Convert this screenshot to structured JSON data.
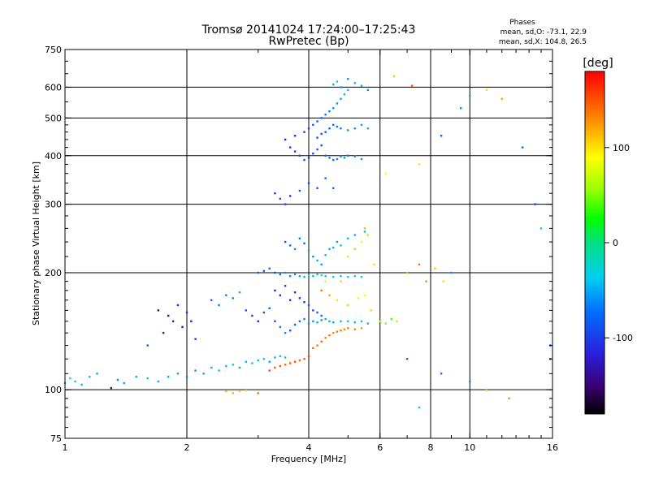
{
  "chart_data": {
    "type": "scatter",
    "title": "Tromsø 20141024 17:24:00–17:25:43",
    "subtitle": "RwPretec (Bp)",
    "stats": {
      "heading": "Phases",
      "line1": "mean, sd,O: -73.1, 22.9",
      "line2": "mean, sd,X: 104.8, 26.5"
    },
    "xlabel": "Frequency [MHz]",
    "ylabel": "Stationary phase Virtual Height [km]",
    "x_scale": "log",
    "y_scale": "log",
    "xlim": [
      1,
      16
    ],
    "ylim": [
      75,
      750
    ],
    "x_ticks": [
      1,
      2,
      4,
      6,
      8,
      10,
      16
    ],
    "x_tick_labels": [
      "1",
      "2",
      "4",
      "6",
      "8",
      "10",
      "16"
    ],
    "y_ticks": [
      75,
      100,
      200,
      300,
      400,
      500,
      600,
      750
    ],
    "y_tick_labels": [
      "75",
      "100",
      "200",
      "300",
      "400",
      "500",
      "600",
      "750"
    ],
    "x_grid": [
      2,
      4,
      6,
      8,
      10
    ],
    "y_grid": [
      100,
      200,
      300,
      400,
      500,
      600
    ],
    "grid": true,
    "colorbar": {
      "label": "[deg]",
      "range": [
        -180,
        180
      ],
      "ticks": [
        100,
        0,
        -100
      ],
      "tick_labels": [
        "100",
        "0",
        "-100"
      ]
    },
    "points": [
      [
        1.0,
        104,
        -40
      ],
      [
        1.03,
        107,
        -30
      ],
      [
        1.06,
        105,
        -35
      ],
      [
        1.1,
        103,
        -45
      ],
      [
        1.15,
        108,
        -40
      ],
      [
        1.2,
        110,
        -50
      ],
      [
        1.3,
        101,
        -140
      ],
      [
        1.35,
        106,
        -60
      ],
      [
        1.4,
        104,
        -55
      ],
      [
        1.5,
        108,
        -50
      ],
      [
        1.6,
        107,
        -40
      ],
      [
        1.7,
        105,
        -45
      ],
      [
        1.8,
        108,
        -50
      ],
      [
        1.9,
        110,
        -55
      ],
      [
        2.0,
        108,
        -60
      ],
      [
        2.1,
        112,
        -55
      ],
      [
        2.2,
        110,
        -50
      ],
      [
        2.3,
        114,
        -45
      ],
      [
        2.4,
        112,
        -40
      ],
      [
        2.5,
        115,
        -45
      ],
      [
        2.6,
        116,
        -40
      ],
      [
        2.7,
        114,
        -50
      ],
      [
        2.8,
        118,
        -45
      ],
      [
        2.9,
        117,
        -40
      ],
      [
        3.0,
        119,
        -45
      ],
      [
        3.1,
        120,
        -40
      ],
      [
        3.2,
        118,
        -50
      ],
      [
        3.3,
        121,
        -45
      ],
      [
        3.4,
        122,
        -40
      ],
      [
        3.5,
        121,
        -45
      ],
      [
        3.2,
        112,
        150
      ],
      [
        3.3,
        114,
        145
      ],
      [
        3.4,
        115,
        150
      ],
      [
        3.5,
        116,
        140
      ],
      [
        3.6,
        117,
        145
      ],
      [
        3.7,
        118,
        150
      ],
      [
        3.8,
        119,
        140
      ],
      [
        3.9,
        120,
        145
      ],
      [
        4.0,
        122,
        150
      ],
      [
        4.1,
        128,
        140
      ],
      [
        4.2,
        130,
        135
      ],
      [
        4.3,
        133,
        140
      ],
      [
        4.4,
        136,
        130
      ],
      [
        4.5,
        138,
        140
      ],
      [
        4.6,
        140,
        130
      ],
      [
        4.7,
        141,
        135
      ],
      [
        4.8,
        142,
        140
      ],
      [
        4.9,
        143,
        130
      ],
      [
        5.0,
        144,
        135
      ],
      [
        5.2,
        143,
        130
      ],
      [
        5.4,
        144,
        125
      ],
      [
        2.5,
        99,
        110
      ],
      [
        2.6,
        98,
        115
      ],
      [
        2.7,
        99,
        100
      ],
      [
        2.8,
        100,
        130
      ],
      [
        3.0,
        98,
        140
      ],
      [
        1.7,
        160,
        -130
      ],
      [
        1.8,
        155,
        -140
      ],
      [
        1.85,
        150,
        -120
      ],
      [
        1.9,
        165,
        -110
      ],
      [
        2.0,
        158,
        -100
      ],
      [
        2.05,
        150,
        -115
      ],
      [
        1.75,
        140,
        -130
      ],
      [
        1.95,
        145,
        -120
      ],
      [
        2.1,
        135,
        -100
      ],
      [
        1.6,
        130,
        -80
      ],
      [
        2.3,
        170,
        -80
      ],
      [
        2.4,
        165,
        -70
      ],
      [
        2.5,
        175,
        -60
      ],
      [
        2.6,
        172,
        -65
      ],
      [
        2.7,
        178,
        -50
      ],
      [
        2.8,
        160,
        -90
      ],
      [
        2.9,
        155,
        -100
      ],
      [
        3.0,
        150,
        -110
      ],
      [
        3.1,
        158,
        -95
      ],
      [
        3.2,
        162,
        -80
      ],
      [
        3.3,
        150,
        -90
      ],
      [
        3.4,
        145,
        -70
      ],
      [
        3.5,
        140,
        -60
      ],
      [
        3.6,
        142,
        -85
      ],
      [
        3.7,
        147,
        -75
      ],
      [
        3.8,
        150,
        -70
      ],
      [
        3.9,
        152,
        -65
      ],
      [
        4.0,
        148,
        -60
      ],
      [
        4.1,
        150,
        -55
      ],
      [
        4.2,
        149,
        -50
      ],
      [
        4.3,
        151,
        -55
      ],
      [
        4.4,
        152,
        -50
      ],
      [
        4.5,
        150,
        -45
      ],
      [
        4.6,
        149,
        -50
      ],
      [
        4.8,
        150,
        -45
      ],
      [
        5.0,
        150,
        -40
      ],
      [
        5.2,
        149,
        -45
      ],
      [
        5.4,
        150,
        -40
      ],
      [
        5.6,
        148,
        -45
      ],
      [
        3.0,
        200,
        -80
      ],
      [
        3.1,
        202,
        -85
      ],
      [
        3.2,
        205,
        -75
      ],
      [
        3.3,
        200,
        -90
      ],
      [
        3.4,
        198,
        -70
      ],
      [
        3.5,
        200,
        -60
      ],
      [
        3.6,
        196,
        -65
      ],
      [
        3.7,
        198,
        -55
      ],
      [
        3.8,
        196,
        -50
      ],
      [
        3.9,
        195,
        -45
      ],
      [
        4.0,
        197,
        -40
      ],
      [
        4.1,
        196,
        -45
      ],
      [
        4.2,
        198,
        -40
      ],
      [
        4.3,
        197,
        -35
      ],
      [
        4.4,
        196,
        -40
      ],
      [
        4.6,
        195,
        -35
      ],
      [
        4.8,
        196,
        -40
      ],
      [
        5.0,
        195,
        -35
      ],
      [
        5.2,
        196,
        -30
      ],
      [
        5.4,
        195,
        -35
      ],
      [
        3.3,
        180,
        -120
      ],
      [
        3.4,
        175,
        -110
      ],
      [
        3.5,
        185,
        -100
      ],
      [
        3.6,
        170,
        -115
      ],
      [
        3.7,
        178,
        -105
      ],
      [
        3.8,
        172,
        -95
      ],
      [
        3.9,
        168,
        -100
      ],
      [
        4.0,
        165,
        -85
      ],
      [
        4.1,
        160,
        -90
      ],
      [
        4.2,
        158,
        -80
      ],
      [
        4.3,
        155,
        -75
      ],
      [
        3.5,
        240,
        -80
      ],
      [
        3.6,
        235,
        -70
      ],
      [
        3.7,
        230,
        -60
      ],
      [
        3.8,
        245,
        -65
      ],
      [
        3.9,
        238,
        -75
      ],
      [
        4.0,
        228,
        -55
      ],
      [
        4.1,
        220,
        -60
      ],
      [
        4.2,
        215,
        -50
      ],
      [
        4.3,
        210,
        -55
      ],
      [
        4.4,
        222,
        -45
      ],
      [
        4.5,
        230,
        -50
      ],
      [
        4.6,
        232,
        -45
      ],
      [
        4.7,
        240,
        -55
      ],
      [
        4.8,
        235,
        -40
      ],
      [
        5.0,
        245,
        -45
      ],
      [
        5.2,
        250,
        -50
      ],
      [
        5.5,
        255,
        -40
      ],
      [
        3.3,
        320,
        -100
      ],
      [
        3.4,
        310,
        -90
      ],
      [
        3.5,
        300,
        -95
      ],
      [
        3.6,
        315,
        -105
      ],
      [
        3.8,
        325,
        -85
      ],
      [
        4.0,
        340,
        -90
      ],
      [
        4.2,
        330,
        -80
      ],
      [
        4.4,
        350,
        -70
      ],
      [
        4.6,
        330,
        -75
      ],
      [
        3.6,
        420,
        -110
      ],
      [
        3.7,
        410,
        -100
      ],
      [
        3.8,
        400,
        -95
      ],
      [
        3.9,
        390,
        -90
      ],
      [
        4.0,
        395,
        -95
      ],
      [
        4.1,
        405,
        -100
      ],
      [
        4.2,
        415,
        -85
      ],
      [
        4.3,
        425,
        -90
      ],
      [
        4.4,
        400,
        -80
      ],
      [
        4.5,
        395,
        -70
      ],
      [
        4.6,
        390,
        -75
      ],
      [
        4.7,
        392,
        -65
      ],
      [
        4.8,
        398,
        -60
      ],
      [
        4.9,
        395,
        -55
      ],
      [
        5.0,
        400,
        -65
      ],
      [
        5.2,
        398,
        -60
      ],
      [
        5.4,
        392,
        -55
      ],
      [
        3.5,
        440,
        -120
      ],
      [
        3.7,
        450,
        -110
      ],
      [
        3.9,
        460,
        -100
      ],
      [
        4.0,
        470,
        -90
      ],
      [
        4.1,
        480,
        -85
      ],
      [
        4.2,
        490,
        -80
      ],
      [
        4.3,
        500,
        -75
      ],
      [
        4.4,
        510,
        -70
      ],
      [
        4.5,
        520,
        -65
      ],
      [
        4.6,
        530,
        -60
      ],
      [
        4.7,
        545,
        -55
      ],
      [
        4.8,
        560,
        -50
      ],
      [
        4.9,
        575,
        -45
      ],
      [
        5.0,
        590,
        -40
      ],
      [
        4.6,
        610,
        -50
      ],
      [
        4.7,
        620,
        -40
      ],
      [
        4.8,
        600,
        -55
      ],
      [
        5.0,
        630,
        -60
      ],
      [
        5.2,
        615,
        -45
      ],
      [
        5.4,
        605,
        -50
      ],
      [
        5.6,
        590,
        -60
      ],
      [
        4.2,
        445,
        -95
      ],
      [
        4.3,
        455,
        -90
      ],
      [
        4.4,
        460,
        -85
      ],
      [
        4.5,
        470,
        -80
      ],
      [
        4.6,
        480,
        -75
      ],
      [
        4.7,
        475,
        -70
      ],
      [
        4.8,
        470,
        -65
      ],
      [
        5.0,
        465,
        -60
      ],
      [
        5.2,
        470,
        -55
      ],
      [
        5.4,
        480,
        -50
      ],
      [
        5.6,
        470,
        -45
      ],
      [
        4.3,
        180,
        140
      ],
      [
        4.5,
        175,
        120
      ],
      [
        4.7,
        170,
        100
      ],
      [
        5.0,
        165,
        110
      ],
      [
        5.3,
        172,
        95
      ],
      [
        5.5,
        175,
        90
      ],
      [
        5.7,
        160,
        105
      ],
      [
        4.4,
        190,
        95
      ],
      [
        4.8,
        190,
        105
      ],
      [
        5.0,
        220,
        100
      ],
      [
        5.2,
        230,
        110
      ],
      [
        5.4,
        240,
        95
      ],
      [
        5.6,
        250,
        105
      ],
      [
        5.8,
        210,
        100
      ],
      [
        5.5,
        260,
        115
      ],
      [
        6.5,
        640,
        110
      ],
      [
        7.2,
        605,
        150
      ],
      [
        6.2,
        360,
        90
      ],
      [
        7.5,
        380,
        100
      ],
      [
        8.5,
        450,
        -80
      ],
      [
        9.5,
        530,
        -60
      ],
      [
        10.0,
        570,
        -50
      ],
      [
        11.0,
        590,
        100
      ],
      [
        12.0,
        560,
        120
      ],
      [
        13.5,
        420,
        -70
      ],
      [
        14.5,
        300,
        -90
      ],
      [
        15.0,
        260,
        -40
      ],
      [
        6.0,
        150,
        60
      ],
      [
        6.2,
        148,
        50
      ],
      [
        6.4,
        152,
        40
      ],
      [
        6.6,
        150,
        70
      ],
      [
        7.0,
        200,
        120
      ],
      [
        7.5,
        210,
        140
      ],
      [
        7.8,
        190,
        130
      ],
      [
        8.2,
        205,
        110
      ],
      [
        8.6,
        190,
        100
      ],
      [
        9.0,
        200,
        -60
      ],
      [
        7.0,
        120,
        -80
      ],
      [
        7.5,
        90,
        -40
      ],
      [
        8.5,
        110,
        -70
      ],
      [
        10.0,
        105,
        -60
      ],
      [
        11.0,
        100,
        120
      ],
      [
        12.5,
        95,
        130
      ],
      [
        15.8,
        120,
        -80
      ],
      [
        15.8,
        130,
        -90
      ]
    ]
  }
}
